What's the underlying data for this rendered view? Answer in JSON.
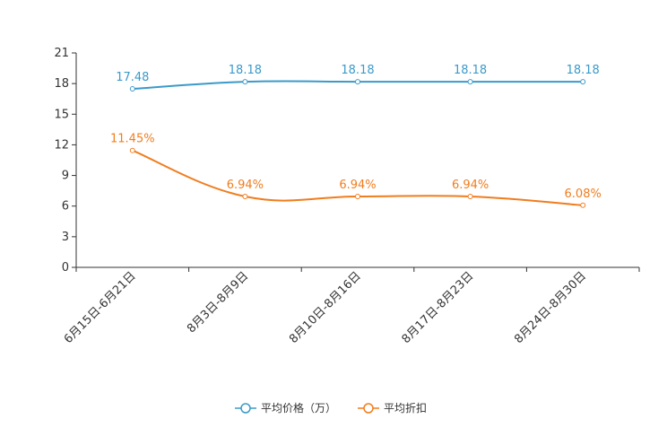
{
  "chart_data": {
    "type": "line",
    "title": "",
    "xlabel": "",
    "ylabel": "",
    "categories": [
      "6月15日-6月21日",
      "8月3日-8月9日",
      "8月10日-8月16日",
      "8月17日-8月23日",
      "8月24日-8月30日"
    ],
    "ylim": [
      0,
      21
    ],
    "yticks": [
      "0",
      "3",
      "6",
      "9",
      "12",
      "15",
      "18",
      "21"
    ],
    "grid": false,
    "legend_position": "bottom-center",
    "series": [
      {
        "name": "平均价格（万）",
        "color": "#3b9ac9",
        "values": [
          17.48,
          18.18,
          18.18,
          18.18,
          18.18
        ],
        "labels": [
          "17.48",
          "18.18",
          "18.18",
          "18.18",
          "18.18"
        ]
      },
      {
        "name": "平均折扣",
        "color": "#f07d1e",
        "values": [
          11.45,
          6.94,
          6.94,
          6.94,
          6.08
        ],
        "labels": [
          "11.45%",
          "6.94%",
          "6.94%",
          "6.94%",
          "6.08%"
        ]
      }
    ]
  }
}
